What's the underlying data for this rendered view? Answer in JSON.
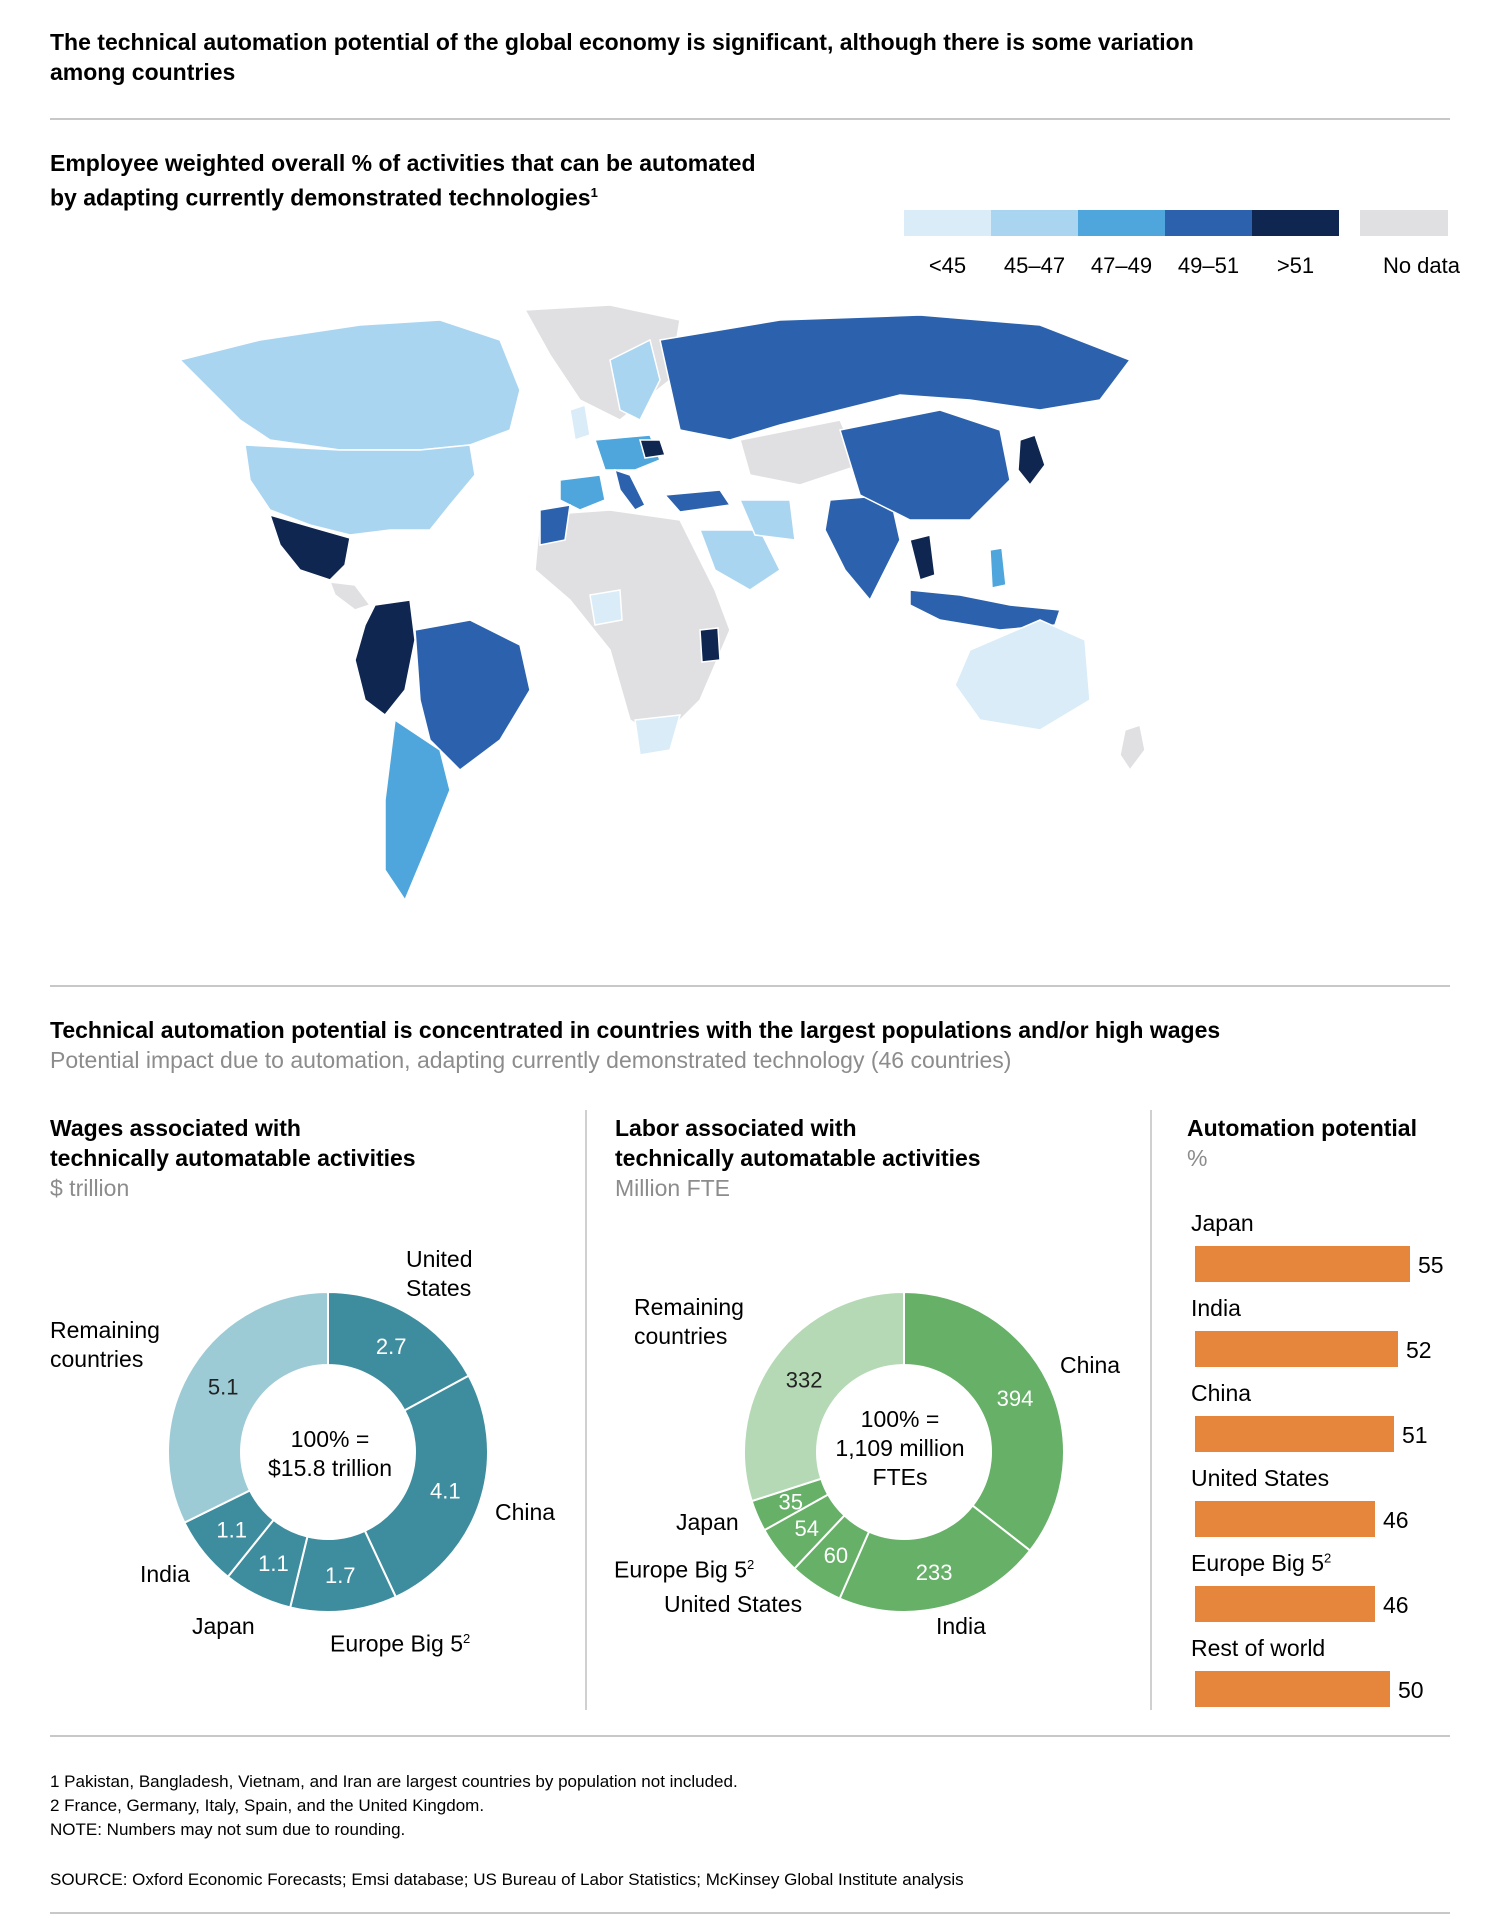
{
  "header": {
    "title_line1": "The technical automation potential of the global economy is significant, although there is some variation",
    "title_line2": "among countries"
  },
  "map": {
    "title_line1": "Employee weighted overall % of activities that can be automated",
    "title_line2": "by adapting currently demonstrated technologies",
    "title_sup": "1",
    "legend": [
      {
        "label": "<45",
        "color": "#d9ecf8"
      },
      {
        "label": "45–47",
        "color": "#a9d5f1"
      },
      {
        "label": "47–49",
        "color": "#4ea6dc"
      },
      {
        "label": "49–51",
        "color": "#2c62ad"
      },
      {
        "label": ">51",
        "color": "#0e2650"
      },
      {
        "label": "No data",
        "color": "#e0e0e2"
      }
    ]
  },
  "section2": {
    "title": "Technical automation potential is concentrated in countries with the largest populations and/or high wages",
    "subtitle": "Potential impact due to automation, adapting currently demonstrated technology (46 countries)"
  },
  "chart_data": [
    {
      "type": "pie",
      "title_line1": "Wages associated with",
      "title_line2": "technically automatable activities",
      "unit": "$ trillion",
      "center_line1": "100% =",
      "center_line2": "$15.8 trillion",
      "categories": [
        "United States",
        "China",
        "Europe Big 5",
        "Japan",
        "India",
        "Remaining countries"
      ],
      "values": [
        2.7,
        4.1,
        1.7,
        1.1,
        1.1,
        5.1
      ],
      "value_labels": [
        "2.7",
        "4.1",
        "1.7",
        "1.1",
        "1.1",
        "5.1"
      ],
      "colors": [
        "#3e8d9f",
        "#3e8d9f",
        "#3e8d9f",
        "#3e8d9f",
        "#3e8d9f",
        "#9dcbd5"
      ]
    },
    {
      "type": "pie",
      "title_line1": "Labor associated with",
      "title_line2": "technically automatable activities",
      "unit": "Million FTE",
      "center_line1": "100% =",
      "center_line2": "1,109 million",
      "center_line3": "FTEs",
      "categories": [
        "China",
        "India",
        "United States",
        "Europe Big 5",
        "Japan",
        "Remaining countries"
      ],
      "values": [
        394,
        233,
        60,
        54,
        35,
        332
      ],
      "value_labels": [
        "394",
        "233",
        "60",
        "54",
        "35",
        "332"
      ],
      "colors": [
        "#66b067",
        "#66b067",
        "#66b067",
        "#66b067",
        "#66b067",
        "#b4d9b4"
      ]
    },
    {
      "type": "bar",
      "title": "Automation potential",
      "unit": "%",
      "categories": [
        "Japan",
        "India",
        "China",
        "United States",
        "Europe Big 5",
        "Rest of world"
      ],
      "values": [
        55,
        52,
        51,
        46,
        46,
        50
      ],
      "color": "#e5863c"
    }
  ],
  "labels": {
    "united_line1": "United",
    "united_line2": "States",
    "china": "China",
    "europe": "Europe Big 5",
    "sup2": "2",
    "japan": "Japan",
    "india": "India",
    "remaining_line1": "Remaining",
    "remaining_line2": "countries",
    "united_states": "United States"
  },
  "footnotes": {
    "f1": "1  Pakistan, Bangladesh, Vietnam, and Iran are largest countries by population not included.",
    "f2": "2  France, Germany, Italy, Spain, and the United Kingdom.",
    "note": "NOTE: Numbers may not sum due to rounding.",
    "source": "SOURCE:  Oxford Economic Forecasts; Emsi database; US Bureau of Labor Statistics; McKinsey Global Institute analysis"
  }
}
